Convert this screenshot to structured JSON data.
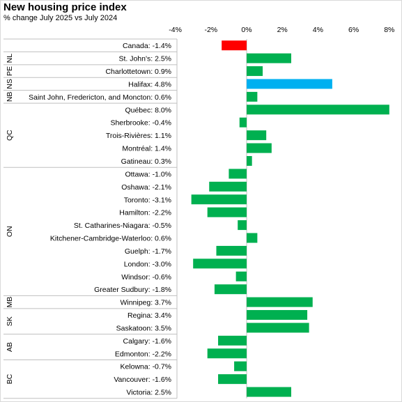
{
  "chart_data": {
    "type": "bar",
    "orientation": "horizontal",
    "title": "New housing price index",
    "subtitle": "% change July 2025 vs July 2024",
    "xlim": [
      -4,
      8
    ],
    "ticks": [
      "-4%",
      "-2%",
      "0%",
      "2%",
      "4%",
      "6%",
      "8%"
    ],
    "tick_values": [
      -4,
      -2,
      0,
      2,
      4,
      6,
      8
    ],
    "colors": {
      "negative_highlight": "#ff0000",
      "highlight": "#00b0f0",
      "default": "#00b050"
    },
    "groups": [
      {
        "province": "",
        "rows": [
          {
            "label": "Canada: -1.4%",
            "value": -1.4,
            "color": "#ff0000"
          }
        ]
      },
      {
        "province": "NL",
        "rows": [
          {
            "label": "St. John's: 2.5%",
            "value": 2.5,
            "color": "#00b050"
          }
        ]
      },
      {
        "province": "PE",
        "rows": [
          {
            "label": "Charlottetown: 0.9%",
            "value": 0.9,
            "color": "#00b050"
          }
        ]
      },
      {
        "province": "NS",
        "rows": [
          {
            "label": "Halifax: 4.8%",
            "value": 4.8,
            "color": "#00b0f0"
          }
        ]
      },
      {
        "province": "NB",
        "rows": [
          {
            "label": "Saint John, Fredericton, and Moncton: 0.6%",
            "value": 0.6,
            "color": "#00b050"
          }
        ]
      },
      {
        "province": "QC",
        "rows": [
          {
            "label": "Québec: 8.0%",
            "value": 8.0,
            "color": "#00b050"
          },
          {
            "label": "Sherbrooke: -0.4%",
            "value": -0.4,
            "color": "#00b050"
          },
          {
            "label": "Trois-Rivières: 1.1%",
            "value": 1.1,
            "color": "#00b050"
          },
          {
            "label": "Montréal: 1.4%",
            "value": 1.4,
            "color": "#00b050"
          },
          {
            "label": "Gatineau: 0.3%",
            "value": 0.3,
            "color": "#00b050"
          }
        ]
      },
      {
        "province": "ON",
        "rows": [
          {
            "label": "Ottawa: -1.0%",
            "value": -1.0,
            "color": "#00b050"
          },
          {
            "label": "Oshawa: -2.1%",
            "value": -2.1,
            "color": "#00b050"
          },
          {
            "label": "Toronto: -3.1%",
            "value": -3.1,
            "color": "#00b050"
          },
          {
            "label": "Hamilton: -2.2%",
            "value": -2.2,
            "color": "#00b050"
          },
          {
            "label": "St. Catharines-Niagara: -0.5%",
            "value": -0.5,
            "color": "#00b050"
          },
          {
            "label": "Kitchener-Cambridge-Waterloo: 0.6%",
            "value": 0.6,
            "color": "#00b050"
          },
          {
            "label": "Guelph: -1.7%",
            "value": -1.7,
            "color": "#00b050"
          },
          {
            "label": "London: -3.0%",
            "value": -3.0,
            "color": "#00b050"
          },
          {
            "label": "Windsor: -0.6%",
            "value": -0.6,
            "color": "#00b050"
          },
          {
            "label": "Greater Sudbury: -1.8%",
            "value": -1.8,
            "color": "#00b050"
          }
        ]
      },
      {
        "province": "MB",
        "rows": [
          {
            "label": "Winnipeg: 3.7%",
            "value": 3.7,
            "color": "#00b050"
          }
        ]
      },
      {
        "province": "SK",
        "rows": [
          {
            "label": "Regina: 3.4%",
            "value": 3.4,
            "color": "#00b050"
          },
          {
            "label": "Saskatoon: 3.5%",
            "value": 3.5,
            "color": "#00b050"
          }
        ]
      },
      {
        "province": "AB",
        "rows": [
          {
            "label": "Calgary: -1.6%",
            "value": -1.6,
            "color": "#00b050"
          },
          {
            "label": "Edmonton: -2.2%",
            "value": -2.2,
            "color": "#00b050"
          }
        ]
      },
      {
        "province": "BC",
        "rows": [
          {
            "label": "Kelowna: -0.7%",
            "value": -0.7,
            "color": "#00b050"
          },
          {
            "label": "Vancouver: -1.6%",
            "value": -1.6,
            "color": "#00b050"
          },
          {
            "label": "Victoria: 2.5%",
            "value": 2.5,
            "color": "#00b050"
          }
        ]
      }
    ]
  }
}
